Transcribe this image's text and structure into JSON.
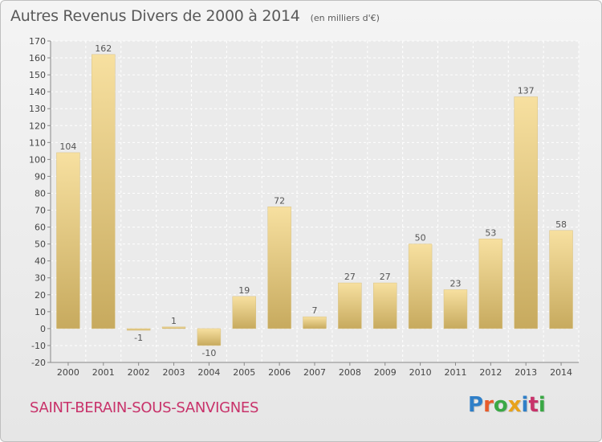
{
  "header": {
    "title": "Autres Revenus Divers de 2000 à 2014",
    "subtitle": "(en milliers d'€)"
  },
  "footer": {
    "commune": "SAINT-BERAIN-SOUS-SANVIGNES",
    "logo": {
      "letters": [
        "P",
        "r",
        "o",
        "x",
        "i",
        "t",
        "i"
      ],
      "colors": [
        "#2f7fc8",
        "#e85b2a",
        "#3aa845",
        "#e8a21a",
        "#2f7fc8",
        "#c8326a",
        "#3aa845"
      ]
    }
  },
  "chart_data": {
    "type": "bar",
    "title": "Autres Revenus Divers de 2000 à 2014",
    "subtitle": "(en milliers d'€)",
    "xlabel": "",
    "ylabel": "",
    "categories": [
      "2000",
      "2001",
      "2002",
      "2003",
      "2004",
      "2005",
      "2006",
      "2007",
      "2008",
      "2009",
      "2010",
      "2011",
      "2012",
      "2013",
      "2014"
    ],
    "values": [
      104,
      162,
      -1,
      1,
      -10,
      19,
      72,
      7,
      27,
      27,
      50,
      23,
      53,
      137,
      58
    ],
    "ylim": [
      -20,
      170
    ],
    "yticks": [
      -20,
      -10,
      0,
      10,
      20,
      30,
      40,
      50,
      60,
      70,
      80,
      90,
      100,
      110,
      120,
      130,
      140,
      150,
      160,
      170
    ],
    "grid": true,
    "colors": {
      "bar_light": "#f5dc96",
      "bar_dark": "#c9ad62",
      "label": "#555555"
    }
  }
}
